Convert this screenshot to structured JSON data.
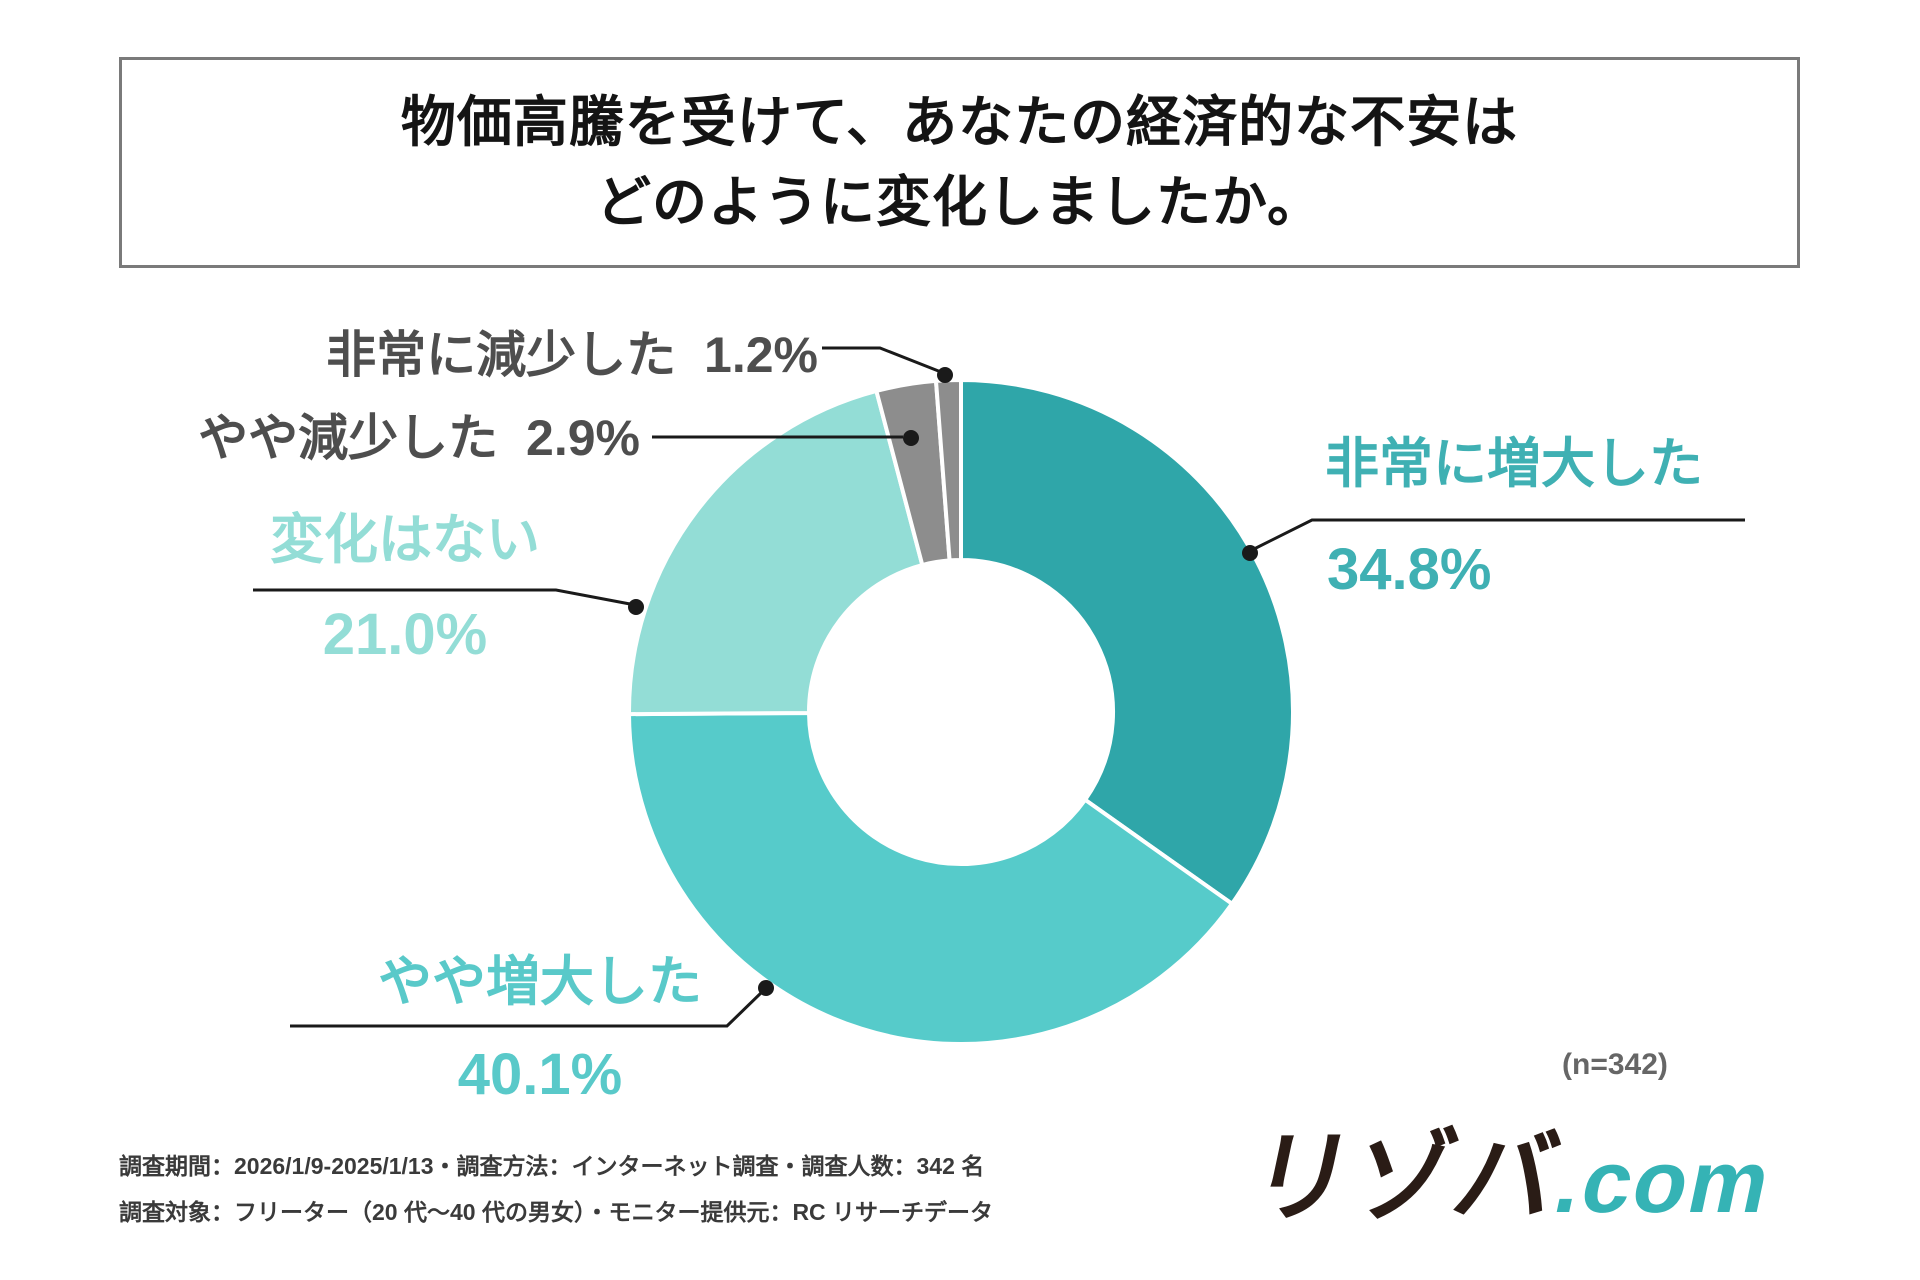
{
  "title": {
    "line1": "物価高騰を受けて、あなたの経済的な不安は",
    "line2": "どのように変化しましたか。"
  },
  "note": "(n=342)",
  "footer": {
    "line1": "調査期間：2026/1/9-2025/1/13・調査方法：インターネット調査・調査人数：342 名",
    "line2": "調査対象：フリーター（20 代〜40 代の男女）・モニター提供元：RC リサーチデータ"
  },
  "logo": {
    "main": "リゾバ",
    "suffix": ".com",
    "main_color": "#2a1c16",
    "suffix_color": "#35b3b5"
  },
  "chart_data": {
    "type": "pie",
    "subtype": "donut",
    "title": "物価高騰を受けて、あなたの経済的な不安はどのように変化しましたか。",
    "sample_size_label": "(n=342)",
    "categories": [
      "非常に増大した",
      "やや増大した",
      "変化はない",
      "やや減少した",
      "非常に減少した"
    ],
    "values": [
      34.8,
      40.1,
      21.0,
      2.9,
      1.2
    ],
    "unit": "%",
    "start_angle_deg": 0,
    "direction": "clockwise",
    "colors": [
      "#2fa6a9",
      "#56cbca",
      "#93ddd6",
      "#8d8d8d",
      "#8d8d8d"
    ],
    "label_colors": [
      "#3fb0b3",
      "#59c9c9",
      "#93ddd6",
      "#4e4e4e",
      "#4e4e4e"
    ],
    "leader_line_color": "#1a1a1a"
  },
  "labels": {
    "very_increased": {
      "name": "非常に増大した",
      "value": "34.8%"
    },
    "somewhat_increased": {
      "name": "やや増大した",
      "value": "40.1%"
    },
    "no_change": {
      "name": "変化はない",
      "value": "21.0%"
    },
    "somewhat_decreased": {
      "name": "やや減少した",
      "value": "2.9%"
    },
    "very_decreased": {
      "name": "非常に減少した",
      "value": "1.2%"
    }
  }
}
